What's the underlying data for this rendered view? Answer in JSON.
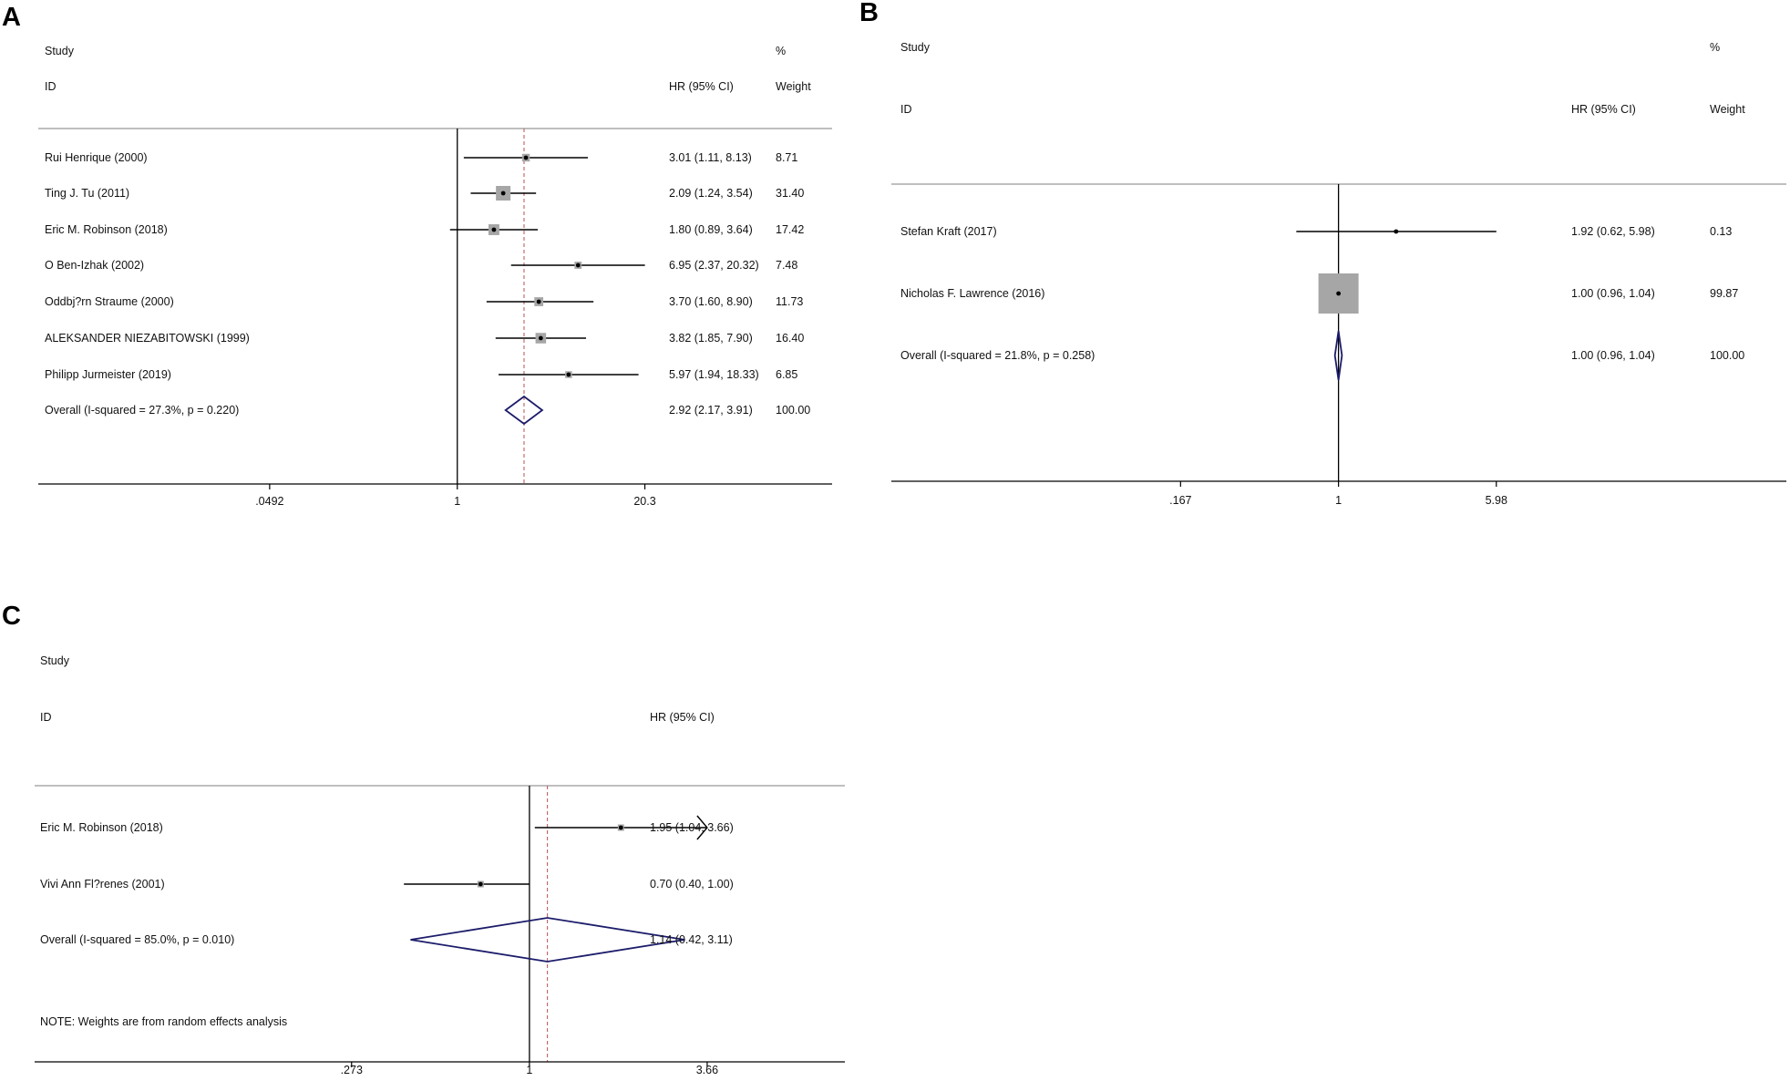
{
  "chart_data": [
    {
      "type": "forest",
      "panel_label": "A",
      "header_study": "Study",
      "header_id": "ID",
      "header_hr": "HR (95% CI)",
      "header_pct": "%",
      "header_weight": "Weight",
      "studies": [
        {
          "label": "Rui Henrique (2000)",
          "hr": 3.01,
          "lo": 1.11,
          "hi": 8.13,
          "hr_text": "3.01 (1.11, 8.13)",
          "weight": 8.71,
          "weight_text": "8.71"
        },
        {
          "label": "Ting J. Tu (2011)",
          "hr": 2.09,
          "lo": 1.24,
          "hi": 3.54,
          "hr_text": "2.09 (1.24, 3.54)",
          "weight": 31.4,
          "weight_text": "31.40"
        },
        {
          "label": "Eric M. Robinson (2018)",
          "hr": 1.8,
          "lo": 0.89,
          "hi": 3.64,
          "hr_text": "1.80 (0.89, 3.64)",
          "weight": 17.42,
          "weight_text": "17.42"
        },
        {
          "label": "O Ben-Izhak (2002)",
          "hr": 6.95,
          "lo": 2.37,
          "hi": 20.32,
          "hr_text": "6.95 (2.37, 20.32)",
          "weight": 7.48,
          "weight_text": "7.48"
        },
        {
          "label": "Oddbj?rn Straume (2000)",
          "hr": 3.7,
          "lo": 1.6,
          "hi": 8.9,
          "hr_text": "3.70 (1.60, 8.90)",
          "weight": 11.73,
          "weight_text": "11.73"
        },
        {
          "label": "ALEKSANDER NIEZABITOWSKI (1999)",
          "hr": 3.82,
          "lo": 1.85,
          "hi": 7.9,
          "hr_text": "3.82 (1.85, 7.90)",
          "weight": 16.4,
          "weight_text": "16.40"
        },
        {
          "label": "Philipp Jurmeister (2019)",
          "hr": 5.97,
          "lo": 1.94,
          "hi": 18.33,
          "hr_text": "5.97 (1.94, 18.33)",
          "weight": 6.85,
          "weight_text": "6.85"
        }
      ],
      "overall": {
        "label": "Overall  (I-squared = 27.3%, p = 0.220)",
        "hr": 2.92,
        "lo": 2.17,
        "hi": 3.91,
        "hr_text": "2.92 (2.17, 3.91)",
        "weight_text": "100.00"
      },
      "axis_ticks": [
        {
          "value": 0.0492,
          "label": ".0492"
        },
        {
          "value": 1,
          "label": "1"
        },
        {
          "value": 20.3,
          "label": "20.3"
        }
      ],
      "xlim": [
        0.0012,
        410
      ],
      "scale": "log",
      "note": "",
      "dashed_line_at_overall": true
    },
    {
      "type": "forest",
      "panel_label": "B",
      "header_study": "Study",
      "header_id": "ID",
      "header_hr": "HR (95% CI)",
      "header_pct": "%",
      "header_weight": "Weight",
      "studies": [
        {
          "label": "Stefan Kraft (2017)",
          "hr": 1.92,
          "lo": 0.62,
          "hi": 5.98,
          "hr_text": "1.92 (0.62, 5.98)",
          "weight": 0.13,
          "weight_text": "0.13"
        },
        {
          "label": "Nicholas F. Lawrence (2016)",
          "hr": 1.0,
          "lo": 0.96,
          "hi": 1.04,
          "hr_text": "1.00 (0.96, 1.04)",
          "weight": 99.87,
          "weight_text": "99.87"
        }
      ],
      "overall": {
        "label": "Overall  (I-squared = 21.8%, p = 0.258)",
        "hr": 1.0,
        "lo": 0.96,
        "hi": 1.04,
        "hr_text": "1.00 (0.96, 1.04)",
        "weight_text": "100.00"
      },
      "axis_ticks": [
        {
          "value": 0.167,
          "label": ".167"
        },
        {
          "value": 1,
          "label": "1"
        },
        {
          "value": 5.98,
          "label": "5.98"
        }
      ],
      "xlim": [
        0.0063,
        160
      ],
      "scale": "log",
      "note": "",
      "dashed_line_at_overall": false
    },
    {
      "type": "forest",
      "panel_label": "C",
      "header_study": "Study",
      "header_id": "ID",
      "header_hr": "HR (95% CI)",
      "header_pct": "",
      "header_weight": "",
      "studies": [
        {
          "label": "Eric M. Robinson (2018)",
          "hr": 1.95,
          "lo": 1.04,
          "hi": 3.66,
          "hr_text": "1.95 (1.04, 3.66)",
          "arrow_right": true
        },
        {
          "label": "Vivi Ann Fl?renes (2001)",
          "hr": 0.7,
          "lo": 0.4,
          "hi": 1.0,
          "hr_text": "0.70 (0.40, 1.00)"
        }
      ],
      "overall": {
        "label": "Overall  (I-squared = 85.0%, p = 0.010)",
        "hr": 1.14,
        "lo": 0.42,
        "hi": 3.11,
        "hr_text": "1.14 (0.42, 3.11)",
        "weight_text": ""
      },
      "axis_ticks": [
        {
          "value": 0.273,
          "label": ".273"
        },
        {
          "value": 1,
          "label": "1"
        },
        {
          "value": 3.66,
          "label": "3.66"
        }
      ],
      "xlim": [
        0.027,
        10
      ],
      "scale": "log",
      "note": "NOTE: Weights are from random effects analysis",
      "dashed_line_at_overall": true
    }
  ],
  "colors": {
    "line": "#000000",
    "box": "#a6a6a6",
    "diamond": "#1c1c6b",
    "dash": "#c06060",
    "separator": "#999999"
  }
}
